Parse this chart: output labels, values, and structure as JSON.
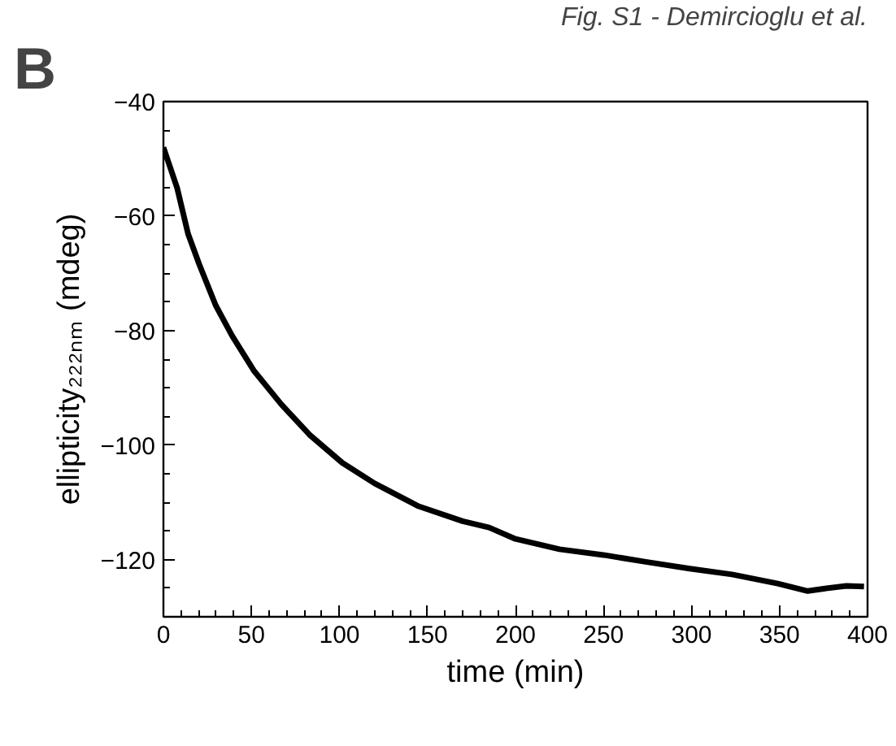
{
  "chart_data": {
    "type": "line",
    "xlabel": "time (min)",
    "ylabel": "ellipticity₂₂₂ₙₘ (mdeg)",
    "annotations": [
      "B",
      "Fig. S1 - Demircioglu et al."
    ],
    "x": [
      0,
      7.8,
      14,
      20.3,
      29.7,
      39,
      51.6,
      67,
      83,
      101.6,
      120,
      145,
      170,
      185,
      200,
      225,
      250,
      274,
      299,
      323,
      349,
      366,
      375,
      388,
      398
    ],
    "series": [
      {
        "color": "#000000",
        "values": [
          -48,
          -55.1,
          -63.1,
          -68.4,
          -75.6,
          -80.9,
          -87.1,
          -92.9,
          -98.2,
          -103.1,
          -106.7,
          -110.7,
          -113.3,
          -114.4,
          -116.4,
          -118.2,
          -119.2,
          -120.4,
          -121.6,
          -122.6,
          -124.2,
          -125.5,
          -125.1,
          -124.6,
          -124.7
        ]
      }
    ],
    "xlim": [
      0,
      400
    ],
    "xticks": [
      0,
      50,
      100,
      150,
      200,
      250,
      300,
      350,
      400
    ],
    "ylim": [
      -130,
      -40
    ],
    "yticks": [
      -40,
      -60,
      -80,
      -100,
      -120
    ],
    "grid": false,
    "marker": "none",
    "line_style": "solid"
  }
}
